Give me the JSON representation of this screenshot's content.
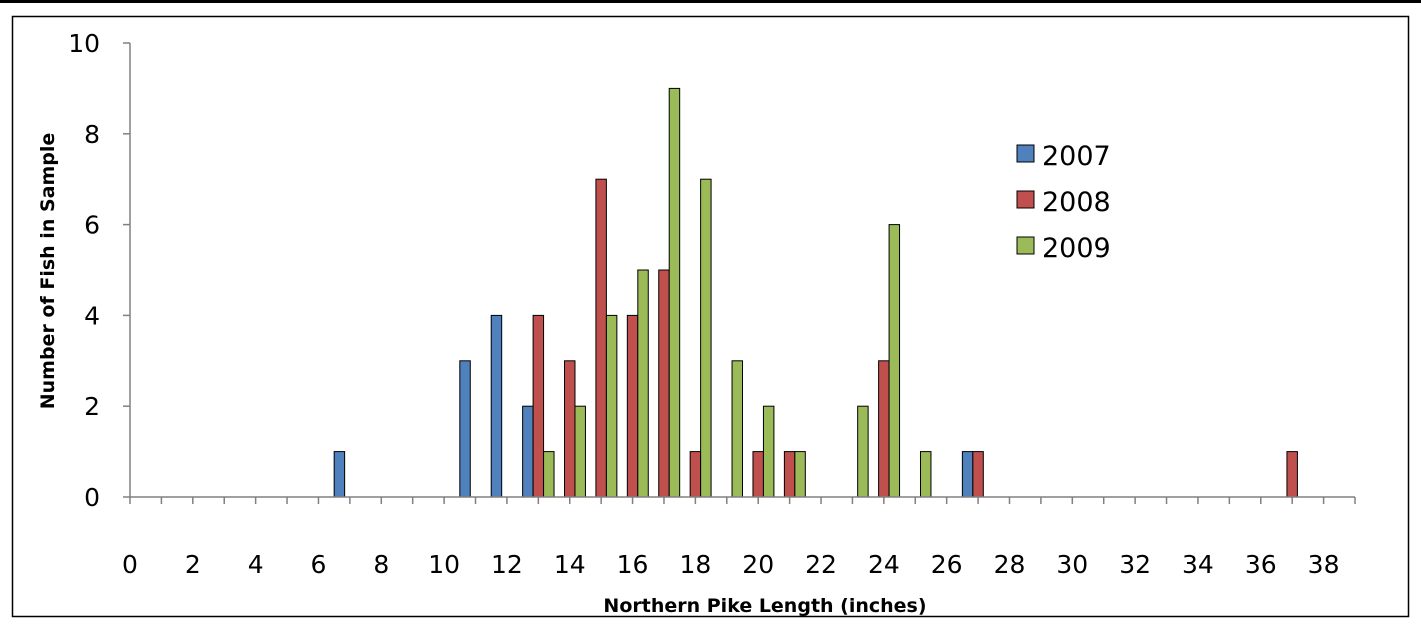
{
  "chart_data": {
    "type": "bar",
    "xlabel": "Northern Pike Length (inches)",
    "ylabel": "Number of Fish in Sample",
    "xlim": [
      0,
      39
    ],
    "ylim": [
      0,
      10
    ],
    "x_ticks": [
      0,
      2,
      4,
      6,
      8,
      10,
      12,
      14,
      16,
      18,
      20,
      22,
      24,
      26,
      28,
      30,
      32,
      34,
      36,
      38
    ],
    "y_ticks": [
      0,
      2,
      4,
      6,
      8,
      10
    ],
    "grid": false,
    "legend_position": "top-right",
    "series": [
      {
        "name": "2007",
        "color": "#4f81bd",
        "points": [
          {
            "x": 7,
            "y": 1
          },
          {
            "x": 11,
            "y": 3
          },
          {
            "x": 12,
            "y": 4
          },
          {
            "x": 13,
            "y": 2
          },
          {
            "x": 27,
            "y": 1
          }
        ]
      },
      {
        "name": "2008",
        "color": "#c0504d",
        "points": [
          {
            "x": 13,
            "y": 4
          },
          {
            "x": 14,
            "y": 3
          },
          {
            "x": 15,
            "y": 7
          },
          {
            "x": 16,
            "y": 4
          },
          {
            "x": 17,
            "y": 5
          },
          {
            "x": 18,
            "y": 1
          },
          {
            "x": 20,
            "y": 1
          },
          {
            "x": 21,
            "y": 1
          },
          {
            "x": 24,
            "y": 3
          },
          {
            "x": 27,
            "y": 1
          },
          {
            "x": 37,
            "y": 1
          }
        ]
      },
      {
        "name": "2009",
        "color": "#9bbb59",
        "points": [
          {
            "x": 13,
            "y": 1
          },
          {
            "x": 14,
            "y": 2
          },
          {
            "x": 15,
            "y": 4
          },
          {
            "x": 16,
            "y": 5
          },
          {
            "x": 17,
            "y": 9
          },
          {
            "x": 18,
            "y": 7
          },
          {
            "x": 19,
            "y": 3
          },
          {
            "x": 20,
            "y": 2
          },
          {
            "x": 21,
            "y": 1
          },
          {
            "x": 23,
            "y": 2
          },
          {
            "x": 24,
            "y": 6
          },
          {
            "x": 25,
            "y": 1
          }
        ]
      }
    ]
  }
}
